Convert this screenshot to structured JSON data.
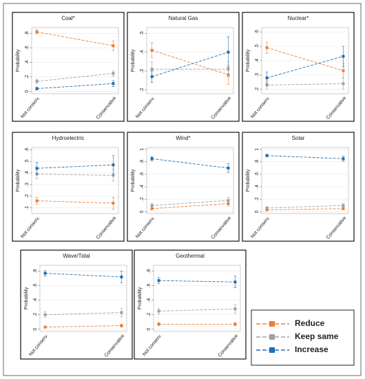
{
  "chart_data": [
    {
      "type": "line",
      "title": "Coal*",
      "ylabel": "Probability",
      "categories": [
        "Not conserv.",
        "Conservative"
      ],
      "ylim": [
        -0.03,
        0.88
      ],
      "yticks": [
        0,
        {
          "value": 0.2,
          "label": ".2"
        },
        {
          "value": 0.4,
          "label": ".4"
        },
        {
          "value": 0.6,
          "label": ".6"
        },
        {
          "value": 0.8,
          "label": ".8"
        }
      ],
      "series": [
        {
          "name": "Reduce",
          "color": "#f07b2e",
          "values": [
            0.82,
            0.63
          ],
          "errors": [
            0.03,
            0.07
          ]
        },
        {
          "name": "Keep same",
          "color": "#a0a0a0",
          "values": [
            0.14,
            0.25
          ],
          "errors": [
            0.03,
            0.04
          ]
        },
        {
          "name": "Increase",
          "color": "#1f6fb5",
          "values": [
            0.04,
            0.11
          ],
          "errors": [
            0.02,
            0.04
          ]
        }
      ]
    },
    {
      "type": "line",
      "title": "Natural Gas",
      "ylabel": "Probability",
      "categories": [
        "Not conserv.",
        "Conservative"
      ],
      "ylim": [
        0.18,
        0.53
      ],
      "yticks": [
        {
          "value": 0.2,
          "label": ".2"
        },
        {
          "value": 0.3,
          "label": ".3"
        },
        {
          "value": 0.4,
          "label": ".4"
        },
        {
          "value": 0.5,
          "label": ".5"
        }
      ],
      "series": [
        {
          "name": "Reduce",
          "color": "#f07b2e",
          "values": [
            0.41,
            0.28
          ],
          "errors": [
            0.04,
            0.05
          ]
        },
        {
          "name": "Keep same",
          "color": "#a0a0a0",
          "values": [
            0.31,
            0.31
          ],
          "errors": [
            0.04,
            0.04
          ]
        },
        {
          "name": "Increase",
          "color": "#1f6fb5",
          "values": [
            0.27,
            0.4
          ],
          "errors": [
            0.03,
            0.08
          ]
        }
      ]
    },
    {
      "type": "line",
      "title": "Nuclear*",
      "ylabel": "Probability",
      "categories": [
        "Not conserv.",
        "Conservative"
      ],
      "ylim": [
        0.17,
        0.63
      ],
      "yticks": [
        {
          "value": 0.2,
          "label": ".2"
        },
        {
          "value": 0.3,
          "label": ".3"
        },
        {
          "value": 0.4,
          "label": ".4"
        },
        {
          "value": 0.5,
          "label": ".5"
        },
        {
          "value": 0.6,
          "label": ".6"
        }
      ],
      "series": [
        {
          "name": "Reduce",
          "color": "#f07b2e",
          "values": [
            0.49,
            0.33
          ],
          "errors": [
            0.04,
            0.05
          ]
        },
        {
          "name": "Keep same",
          "color": "#a0a0a0",
          "values": [
            0.23,
            0.24
          ],
          "errors": [
            0.03,
            0.04
          ]
        },
        {
          "name": "Increase",
          "color": "#1f6fb5",
          "values": [
            0.28,
            0.43
          ],
          "errors": [
            0.04,
            0.07
          ]
        }
      ]
    },
    {
      "type": "line",
      "title": "Hydroelectric",
      "ylabel": "Probability",
      "categories": [
        "Not conserv.",
        "Conservative"
      ],
      "ylim": [
        0.05,
        0.62
      ],
      "yticks": [
        {
          "value": 0.1,
          "label": ".1"
        },
        {
          "value": 0.2,
          "label": ".2"
        },
        {
          "value": 0.3,
          "label": ".3"
        },
        {
          "value": 0.4,
          "label": ".4"
        },
        {
          "value": 0.5,
          "label": ".5"
        },
        {
          "value": 0.6,
          "label": ".6"
        }
      ],
      "series": [
        {
          "name": "Reduce",
          "color": "#f07b2e",
          "values": [
            0.16,
            0.14
          ],
          "errors": [
            0.03,
            0.05
          ]
        },
        {
          "name": "Keep same",
          "color": "#a0a0a0",
          "values": [
            0.39,
            0.38
          ],
          "errors": [
            0.04,
            0.05
          ]
        },
        {
          "name": "Increase",
          "color": "#1f6fb5",
          "values": [
            0.44,
            0.47
          ],
          "errors": [
            0.05,
            0.08
          ]
        }
      ]
    },
    {
      "type": "line",
      "title": "Wind*",
      "ylabel": "Probability",
      "categories": [
        "Not conserv.",
        "Conservative"
      ],
      "ylim": [
        -0.03,
        1.03
      ],
      "yticks": [
        0,
        {
          "value": 0.2,
          "label": ".2"
        },
        {
          "value": 0.4,
          "label": ".4"
        },
        {
          "value": 0.6,
          "label": ".6"
        },
        {
          "value": 0.8,
          "label": ".8"
        },
        1
      ],
      "series": [
        {
          "name": "Reduce",
          "color": "#f07b2e",
          "values": [
            0.05,
            0.13
          ],
          "errors": [
            0.02,
            0.04
          ]
        },
        {
          "name": "Keep same",
          "color": "#a0a0a0",
          "values": [
            0.1,
            0.18
          ],
          "errors": [
            0.03,
            0.05
          ]
        },
        {
          "name": "Increase",
          "color": "#1f6fb5",
          "values": [
            0.85,
            0.7
          ],
          "errors": [
            0.03,
            0.07
          ]
        }
      ]
    },
    {
      "type": "line",
      "title": "Solar",
      "ylabel": "Probability",
      "categories": [
        "Not conserv.",
        "Conservative"
      ],
      "ylim": [
        -0.03,
        1.03
      ],
      "yticks": [
        0,
        {
          "value": 0.2,
          "label": ".2"
        },
        {
          "value": 0.4,
          "label": ".4"
        },
        {
          "value": 0.6,
          "label": ".6"
        },
        {
          "value": 0.8,
          "label": ".8"
        },
        1
      ],
      "series": [
        {
          "name": "Reduce",
          "color": "#f07b2e",
          "values": [
            0.03,
            0.05
          ],
          "errors": [
            0.01,
            0.02
          ]
        },
        {
          "name": "Keep same",
          "color": "#a0a0a0",
          "values": [
            0.06,
            0.1
          ],
          "errors": [
            0.02,
            0.03
          ]
        },
        {
          "name": "Increase",
          "color": "#1f6fb5",
          "values": [
            0.9,
            0.85
          ],
          "errors": [
            0.02,
            0.04
          ]
        }
      ]
    },
    {
      "type": "line",
      "title": "Wave/Tidal",
      "ylabel": "Probability",
      "categories": [
        "Not conserv.",
        "Conservative"
      ],
      "ylim": [
        -0.03,
        0.88
      ],
      "yticks": [
        0,
        {
          "value": 0.2,
          "label": ".2"
        },
        {
          "value": 0.4,
          "label": ".4"
        },
        {
          "value": 0.6,
          "label": ".6"
        },
        {
          "value": 0.8,
          "label": ".8"
        }
      ],
      "series": [
        {
          "name": "Reduce",
          "color": "#f07b2e",
          "values": [
            0.03,
            0.05
          ],
          "errors": [
            0.01,
            0.02
          ]
        },
        {
          "name": "Keep same",
          "color": "#a0a0a0",
          "values": [
            0.2,
            0.23
          ],
          "errors": [
            0.04,
            0.06
          ]
        },
        {
          "name": "Increase",
          "color": "#1f6fb5",
          "values": [
            0.77,
            0.72
          ],
          "errors": [
            0.04,
            0.08
          ]
        }
      ]
    },
    {
      "type": "line",
      "title": "Geothermal",
      "ylabel": "Probability",
      "categories": [
        "Not conserv.",
        "Conservative"
      ],
      "ylim": [
        -0.03,
        0.88
      ],
      "yticks": [
        0,
        {
          "value": 0.2,
          "label": ".2"
        },
        {
          "value": 0.4,
          "label": ".4"
        },
        {
          "value": 0.6,
          "label": ".6"
        },
        {
          "value": 0.8,
          "label": ".8"
        }
      ],
      "series": [
        {
          "name": "Reduce",
          "color": "#f07b2e",
          "values": [
            0.07,
            0.07
          ],
          "errors": [
            0.02,
            0.02
          ]
        },
        {
          "name": "Keep same",
          "color": "#a0a0a0",
          "values": [
            0.25,
            0.28
          ],
          "errors": [
            0.04,
            0.06
          ]
        },
        {
          "name": "Increase",
          "color": "#1f6fb5",
          "values": [
            0.67,
            0.65
          ],
          "errors": [
            0.04,
            0.08
          ]
        }
      ]
    }
  ]
}
